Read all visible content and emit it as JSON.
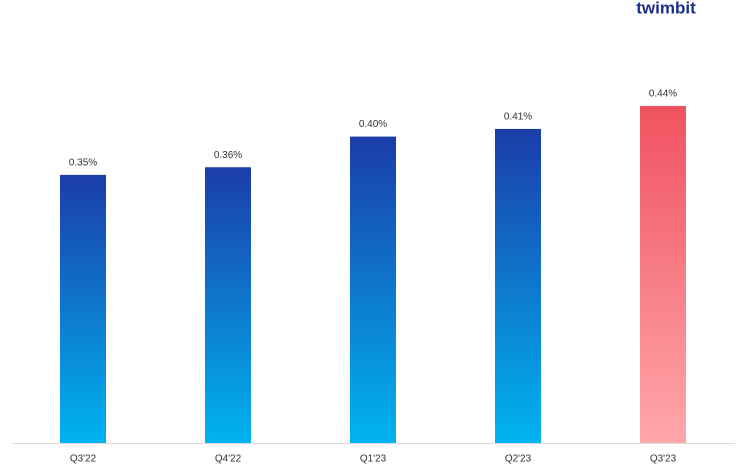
{
  "logo": "twimbit",
  "chart_data": {
    "type": "bar",
    "categories": [
      "Q3'22",
      "Q4'22",
      "Q1'23",
      "Q2'23",
      "Q3'23"
    ],
    "values": [
      0.35,
      0.36,
      0.4,
      0.41,
      0.44
    ],
    "value_labels": [
      "0.35%",
      "0.36%",
      "0.40%",
      "0.41%",
      "0.44%"
    ],
    "colors": [
      [
        "#1b3da8",
        "#00b3f1"
      ],
      [
        "#1b3da8",
        "#00b3f1"
      ],
      [
        "#1b3da8",
        "#00b3f1"
      ],
      [
        "#1b3da8",
        "#00b3f1"
      ],
      [
        "#f0525f",
        "#ffa7ab"
      ]
    ],
    "ylim": [
      0,
      0.5
    ]
  }
}
